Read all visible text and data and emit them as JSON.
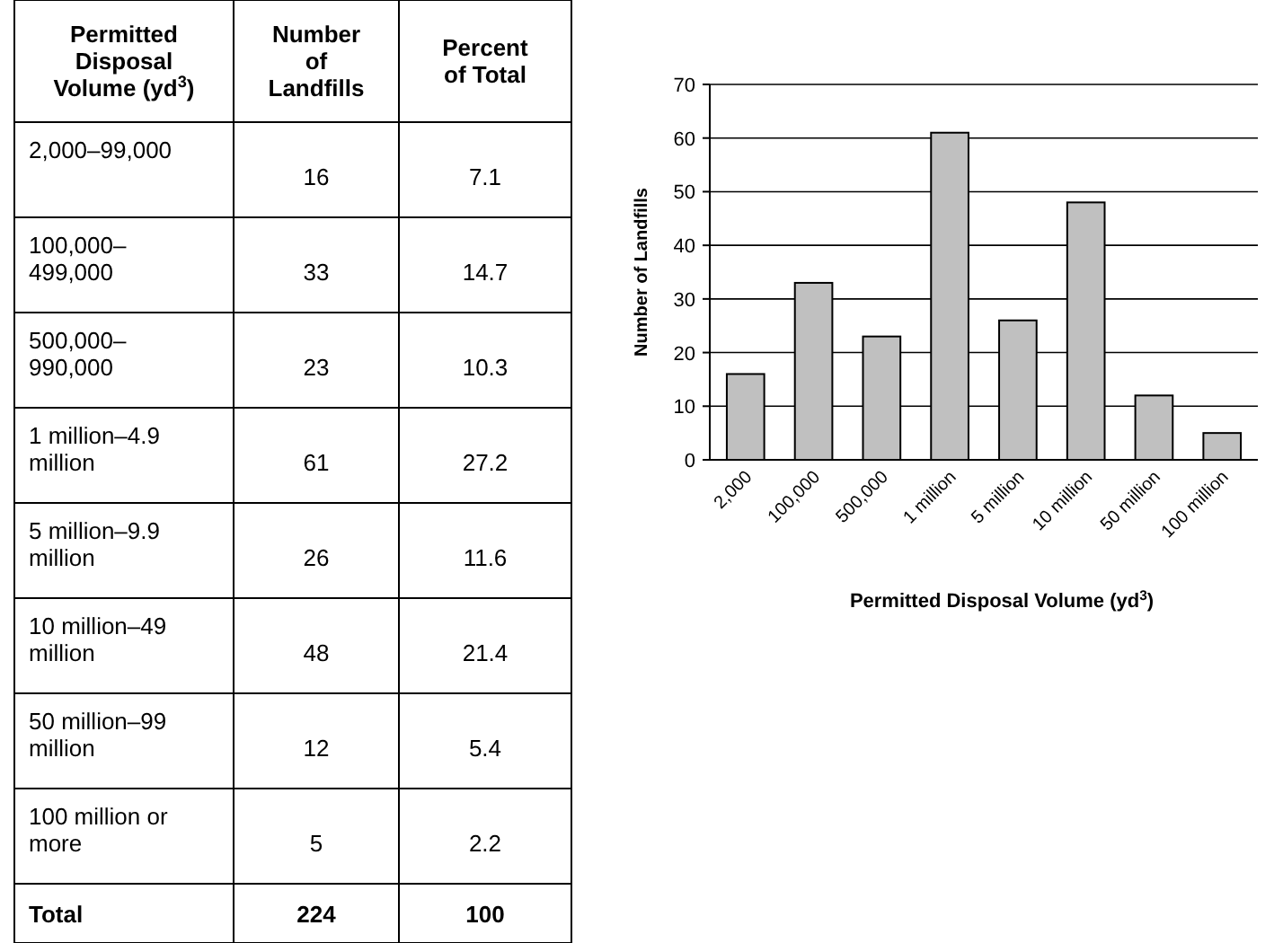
{
  "chart_data": [
    {
      "type": "other",
      "annotations": [
        "Permitted Disposal Volume (yd$^{3}$)",
        "Number of Landfills",
        "Percent of Total",
        "2,000–99,000",
        "16",
        "7.1",
        "100,000–499,000",
        "33",
        "14.7",
        "500,000–990,000",
        "23",
        "10.3",
        "1 million–4.9 million",
        "61",
        "27.2",
        "5 million–9.9 million",
        "26",
        "11.6",
        "10 million–49 million",
        "48",
        "21.4",
        "50 million–99 million",
        "12",
        "5.4",
        "100 million or more",
        "5",
        "2.2",
        "Total",
        "224",
        "100"
      ]
    },
    {
      "type": "bar",
      "categories": [
        "2,000",
        "100,000",
        "500,000",
        "1 million",
        "5 million",
        "10 million",
        "50 million",
        "100 million"
      ],
      "values": [
        16,
        33,
        23,
        61,
        26,
        48,
        12,
        5
      ],
      "color": "#c0c0c0",
      "ylim": [
        0,
        70
      ],
      "yticks": [
        0,
        10,
        20,
        30,
        40,
        50,
        60,
        70
      ],
      "grid": "y",
      "xlabel": "Permitted Disposal Volume (yd$^{3}$)",
      "ylabel": "Number of Landfills"
    }
  ]
}
